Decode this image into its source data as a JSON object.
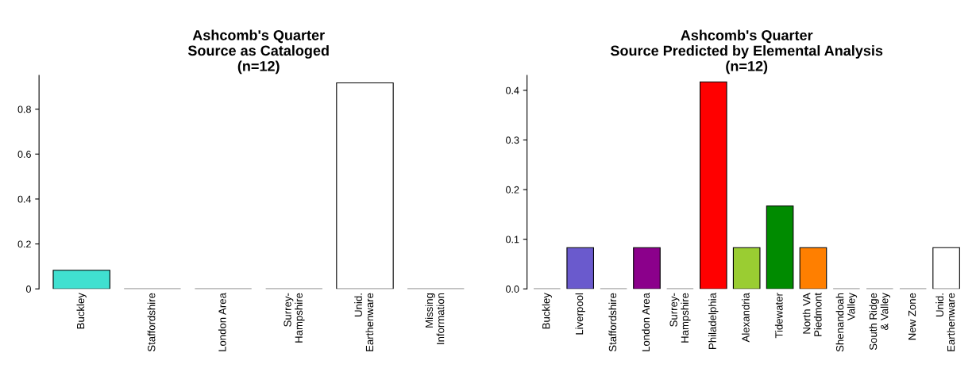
{
  "chart_data": [
    {
      "type": "bar",
      "title": "Ashcomb's Quarter\nSource as Cataloged\n(n=12)",
      "categories": [
        "Buckley",
        "Staffordshire",
        "London Area",
        "Surrey-\nHampshire",
        "Unid.\nEarthenware",
        "Missing\nInformation"
      ],
      "values": [
        0.083,
        0,
        0,
        0,
        0.917,
        0
      ],
      "colors": [
        "#40e0d0",
        "#000000",
        "#000000",
        "#000000",
        "#ffffff",
        "#000000"
      ],
      "ylim": [
        0,
        0.95
      ],
      "yticks": [
        0,
        {
          "value": 0.2,
          "label": "0.2"
        },
        {
          "value": 0.4,
          "label": "0.4"
        },
        {
          "value": 0.6,
          "label": "0.6"
        },
        {
          "value": 0.8,
          "label": "0.8"
        }
      ],
      "grid": false
    },
    {
      "type": "bar",
      "title": "Ashcomb's Quarter\nSource Predicted by Elemental Analysis\n(n=12)",
      "categories": [
        "Buckley",
        "Liverpool",
        "Staffordshire",
        "London Area",
        "Surrey-\nHampshire",
        "Philadelphia",
        "Alexandria",
        "Tidewater",
        "North VA\nPiedmont",
        "Shenandoah\nValley",
        "South Ridge\n& Valley",
        "New Zone",
        "Unid.\nEarthenware"
      ],
      "values": [
        0,
        0.083,
        0,
        0.083,
        0,
        0.417,
        0.083,
        0.167,
        0.083,
        0,
        0,
        0,
        0.083
      ],
      "colors": [
        "#000000",
        "#6a5acd",
        "#000000",
        "#8b008b",
        "#000000",
        "#ff0000",
        "#9acd32",
        "#008b00",
        "#ff7f00",
        "#000000",
        "#000000",
        "#000000",
        "#ffffff"
      ],
      "ylim": [
        0,
        0.43
      ],
      "yticks": [
        {
          "value": 0,
          "label": "0.0"
        },
        {
          "value": 0.1,
          "label": "0.1"
        },
        {
          "value": 0.2,
          "label": "0.2"
        },
        {
          "value": 0.3,
          "label": "0.3"
        },
        {
          "value": 0.4,
          "label": "0.4"
        }
      ],
      "grid": false
    }
  ]
}
